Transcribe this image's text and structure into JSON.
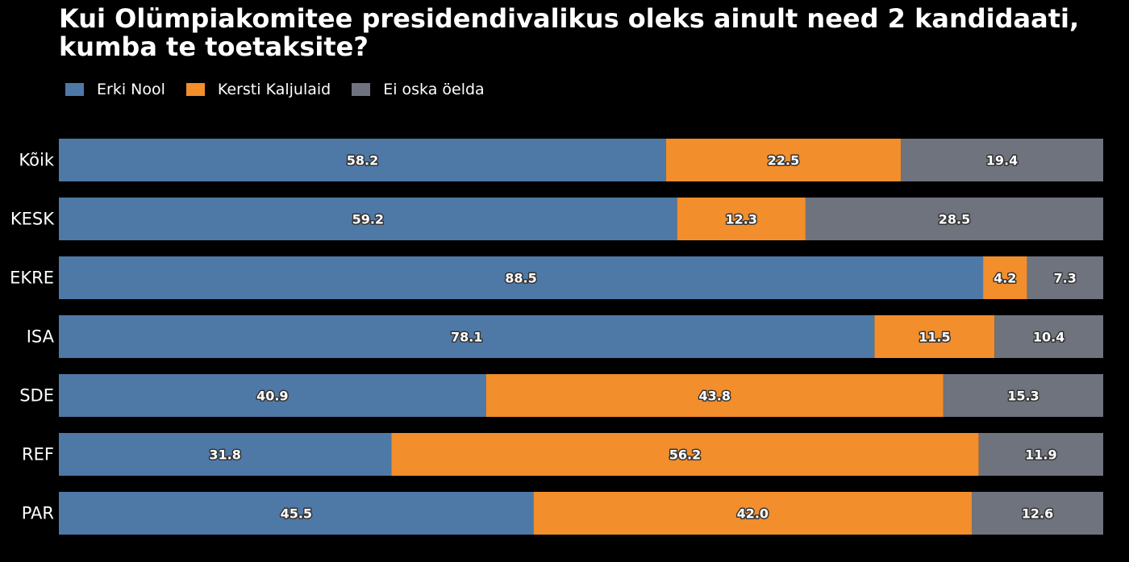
{
  "chart_data": {
    "type": "bar",
    "orientation": "horizontal",
    "stacked": true,
    "title": "Kui Olümpiakomitee presidendivalikus oleks ainult need 2 kandidaati, kumba te toetaksite?",
    "categories": [
      "Kõik",
      "KESK",
      "EKRE",
      "ISA",
      "SDE",
      "REF",
      "PAR"
    ],
    "series": [
      {
        "name": "Erki Nool",
        "color": "#4e79a7",
        "values": [
          58.2,
          59.2,
          88.5,
          78.1,
          40.9,
          31.8,
          45.5
        ],
        "labels": [
          "58.2",
          "59.2",
          "88.5",
          "78.1",
          "40.9",
          "31.8",
          "45.5"
        ]
      },
      {
        "name": "Kersti Kaljulaid",
        "color": "#f28e2b",
        "values": [
          22.5,
          12.3,
          4.2,
          11.5,
          43.8,
          56.2,
          42.0
        ],
        "labels": [
          "22.5",
          "12.3",
          "4.2",
          "11.5",
          "43.8",
          "56.2",
          "42.0"
        ]
      },
      {
        "name": "Ei oska öelda",
        "color": "#6e737d",
        "values": [
          19.4,
          28.5,
          7.3,
          10.4,
          15.3,
          11.9,
          12.6
        ],
        "labels": [
          "19.4",
          "28.5",
          "7.3",
          "10.4",
          "15.3",
          "11.9",
          "12.6"
        ]
      }
    ],
    "xlim": [
      0,
      100
    ],
    "xlabel": "",
    "ylabel": "",
    "grid": false,
    "legend_position": "top-left"
  }
}
